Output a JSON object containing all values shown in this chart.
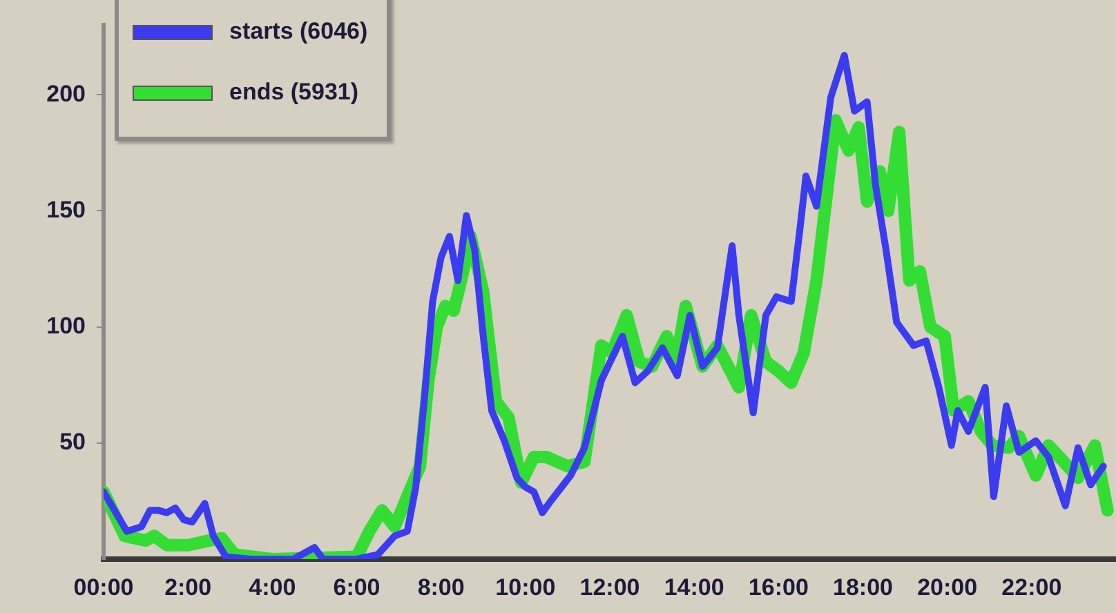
{
  "chart_data": {
    "type": "line",
    "xlim": [
      0,
      24
    ],
    "ylim": [
      0,
      230
    ],
    "xticks": [
      {
        "value": 0,
        "label": "00:00"
      },
      {
        "value": 2,
        "label": "2:00"
      },
      {
        "value": 4,
        "label": "4:00"
      },
      {
        "value": 6,
        "label": "6:00"
      },
      {
        "value": 8,
        "label": "8:00"
      },
      {
        "value": 10,
        "label": "10:00"
      },
      {
        "value": 12,
        "label": "12:00"
      },
      {
        "value": 14,
        "label": "14:00"
      },
      {
        "value": 16,
        "label": "16:00"
      },
      {
        "value": 18,
        "label": "18:00"
      },
      {
        "value": 20,
        "label": "20:00"
      },
      {
        "value": 22,
        "label": "22:00"
      }
    ],
    "yticks": [
      50,
      100,
      150,
      200
    ],
    "grid": false,
    "legend": "top left",
    "marker": "none",
    "line_style": "solid",
    "series": [
      {
        "name": "starts (6046)",
        "color": "#3b3bf0",
        "x": [
          0,
          0.55,
          0.9,
          1.1,
          1.3,
          1.5,
          1.7,
          1.9,
          2.1,
          2.4,
          2.6,
          2.9,
          3.5,
          4.5,
          5,
          5.2,
          6,
          6.5,
          6.9,
          7.2,
          7.4,
          7.6,
          7.8,
          8,
          8.2,
          8.4,
          8.6,
          8.8,
          9,
          9.2,
          9.5,
          9.8,
          10,
          10.2,
          10.4,
          10.6,
          11.07,
          11.4,
          11.8,
          12.3,
          12.6,
          12.9,
          13.25,
          13.6,
          13.9,
          14.2,
          14.55,
          14.9,
          15.06,
          15.4,
          15.7,
          15.95,
          16.3,
          16.5,
          16.65,
          16.9,
          17.24,
          17.56,
          17.8,
          18.1,
          18.3,
          18.55,
          18.8,
          19.2,
          19.5,
          19.8,
          20.1,
          20.25,
          20.5,
          20.9,
          21.1,
          21.4,
          21.7,
          22.1,
          22.4,
          22.8,
          23.1,
          23.4,
          23.7
        ],
        "values": [
          29,
          12,
          14,
          21,
          21,
          20,
          22,
          17,
          16,
          24,
          10,
          1,
          0,
          0,
          5,
          0,
          0,
          2,
          10,
          12,
          31,
          68,
          111,
          130,
          139,
          120,
          148,
          133,
          96,
          64,
          51,
          35,
          31,
          29,
          20,
          25,
          36,
          48,
          77,
          96,
          76,
          81,
          91,
          79,
          105,
          83,
          91,
          135,
          105,
          63,
          105,
          113,
          111,
          141,
          165,
          152,
          199,
          217,
          193,
          197,
          161,
          133,
          102,
          92,
          94,
          74,
          49,
          64,
          55,
          74,
          27,
          66,
          46,
          51,
          44,
          23,
          48,
          32,
          40
        ]
      },
      {
        "name": "ends (5931)",
        "color": "#33dd33",
        "x": [
          0,
          0.5,
          1,
          1.2,
          1.5,
          2,
          2.5,
          2.8,
          3.1,
          4,
          6,
          6.3,
          6.6,
          6.9,
          7.2,
          7.5,
          7.7,
          7.9,
          8.1,
          8.3,
          8.5,
          8.7,
          9,
          9.3,
          9.6,
          9.9,
          10.2,
          10.5,
          11,
          11.4,
          11.8,
          12.05,
          12.4,
          12.7,
          13,
          13.35,
          13.57,
          13.8,
          14.2,
          14.55,
          15.06,
          15.35,
          15.7,
          16,
          16.3,
          16.6,
          16.9,
          17.15,
          17.35,
          17.66,
          17.9,
          18.1,
          18.4,
          18.6,
          18.86,
          19.1,
          19.35,
          19.6,
          19.94,
          20.15,
          20.5,
          20.8,
          21.07,
          21.46,
          21.7,
          22.1,
          22.4,
          22.76,
          23.1,
          23.5,
          23.8
        ],
        "values": [
          29,
          10,
          8,
          10,
          6,
          6,
          8,
          9,
          2,
          0,
          1,
          12,
          21,
          14,
          27,
          40,
          77,
          100,
          109,
          107,
          122,
          139,
          115,
          68,
          61,
          33,
          44,
          44,
          40,
          42,
          92,
          89,
          105,
          85,
          83,
          96,
          85,
          109,
          83,
          92,
          74,
          105,
          85,
          81,
          76,
          89,
          120,
          158,
          189,
          176,
          186,
          154,
          167,
          150,
          184,
          120,
          124,
          100,
          96,
          64,
          68,
          55,
          49,
          48,
          53,
          36,
          49,
          42,
          35,
          49,
          21
        ]
      }
    ]
  }
}
